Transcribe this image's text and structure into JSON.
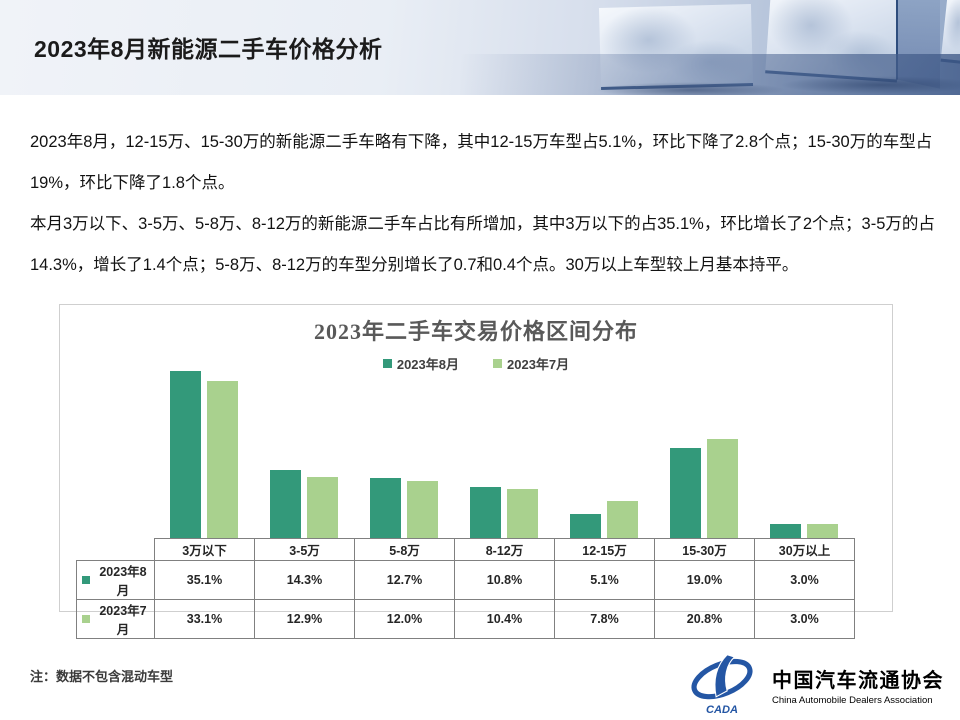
{
  "slide": {
    "title": "2023年8月新能源二手车价格分析",
    "paragraphs": [
      "2023年8月，12-15万、15-30万的新能源二手车略有下降，其中12-15万车型占5.1%，环比下降了2.8个点；15-30万的车型占19%，环比下降了1.8个点。",
      "本月3万以下、3-5万、5-8万、8-12万的新能源二手车占比有所增加，其中3万以下的占35.1%，环比增长了2个点；3-5万的占14.3%，增长了1.4个点；5-8万、8-12万的车型分别增长了0.7和0.4个点。30万以上车型较上月基本持平。"
    ],
    "note": "注：数据不包含混动车型"
  },
  "chart_data": {
    "type": "bar",
    "title": "2023年二手车交易价格区间分布",
    "categories": [
      "3万以下",
      "3-5万",
      "5-8万",
      "8-12万",
      "12-15万",
      "15-30万",
      "30万以上"
    ],
    "series": [
      {
        "name": "2023年8月",
        "color": "#33997a",
        "values": [
          35.1,
          14.3,
          12.7,
          10.8,
          5.1,
          19.0,
          3.0
        ]
      },
      {
        "name": "2023年7月",
        "color": "#a9d18e",
        "values": [
          33.1,
          12.9,
          12.0,
          10.4,
          7.8,
          20.8,
          3.0
        ]
      }
    ],
    "value_suffix": "%",
    "xlabel": "",
    "ylabel": "",
    "ylim": [
      0,
      36
    ],
    "grid": false,
    "legend_position": "top",
    "data_table_shown": true
  },
  "logo": {
    "cn": "中国汽车流通协会",
    "en": "China Automobile Dealers Association",
    "acronym": "CADA",
    "color": "#2456a4"
  }
}
